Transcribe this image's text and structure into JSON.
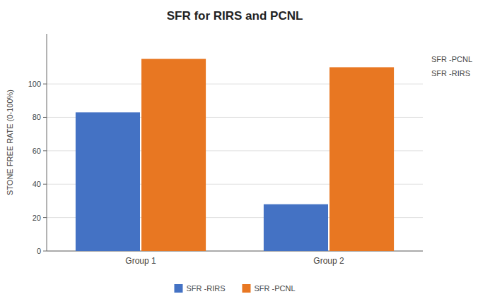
{
  "chart_data": {
    "type": "bar",
    "title": "SFR for RIRS and PCNL",
    "ylabel": "STONE FREE RATE (0-100%)",
    "categories": [
      "Group 1",
      "Group 2"
    ],
    "series": [
      {
        "name": "SFR -RIRS",
        "values": [
          83,
          28
        ],
        "color": "#4472C4"
      },
      {
        "name": "SFR -PCNL",
        "values": [
          115,
          110
        ],
        "color": "#E87722"
      }
    ],
    "ylim": [
      0,
      130
    ],
    "yticks": [
      0,
      20,
      40,
      60,
      80,
      100
    ],
    "grid": true,
    "legend": "bottom",
    "annotations": [
      "SFR -PCNL",
      "SFR -RIRS"
    ]
  }
}
